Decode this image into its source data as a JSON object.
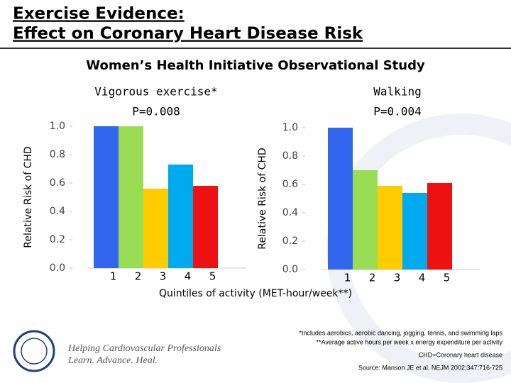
{
  "slide": {
    "title_lines": [
      "Exercise Evidence:",
      "Effect on Coronary Heart Disease Risk"
    ],
    "subtitle": "Women’s Health Initiative Observational Study",
    "xlabel": "Quintiles of activity (MET-hour/week**)",
    "footnotes": [
      "*Includes aerobics, aerobic dancing, jogging, tennis, and swimming laps",
      "**Average active hours per week x energy expenditure per activity"
    ],
    "abbreviation": "CHD=Coronary heart disease",
    "source": "Source: Manson JE et al. NEJM 2002;347:716-725",
    "logo_text": [
      "Helping Cardiovascular Professionals",
      "Learn. Advance. Heal."
    ]
  },
  "chart_data": [
    {
      "type": "bar",
      "title": "Vigorous exercise*",
      "annotation": "P=0.008",
      "ylabel": "Relative Risk of CHD",
      "categories": [
        "1",
        "2",
        "3",
        "4",
        "5"
      ],
      "values": [
        1.0,
        1.0,
        0.56,
        0.73,
        0.58
      ],
      "colors": [
        "#3366ee",
        "#99dd55",
        "#ffcc00",
        "#00aaee",
        "#ee1111"
      ],
      "ylim": [
        0,
        1
      ],
      "yticks": [
        {
          "value": 0,
          "label": "0.0"
        },
        0.2,
        0.4,
        0.6,
        0.8,
        {
          "value": 1,
          "label": "1.0"
        }
      ]
    },
    {
      "type": "bar",
      "title": "Walking",
      "annotation": "P=0.004",
      "ylabel": "Relative Risk of CHD",
      "categories": [
        "1",
        "2",
        "3",
        "4",
        "5"
      ],
      "values": [
        1.0,
        0.7,
        0.59,
        0.54,
        0.61
      ],
      "colors": [
        "#3366ee",
        "#99dd55",
        "#ffcc00",
        "#00aaee",
        "#ee1111"
      ],
      "ylim": [
        0,
        1
      ],
      "yticks": [
        {
          "value": 0,
          "label": "0.0"
        },
        0.2,
        0.4,
        0.6,
        0.8,
        {
          "value": 1,
          "label": "1.0"
        }
      ]
    }
  ]
}
